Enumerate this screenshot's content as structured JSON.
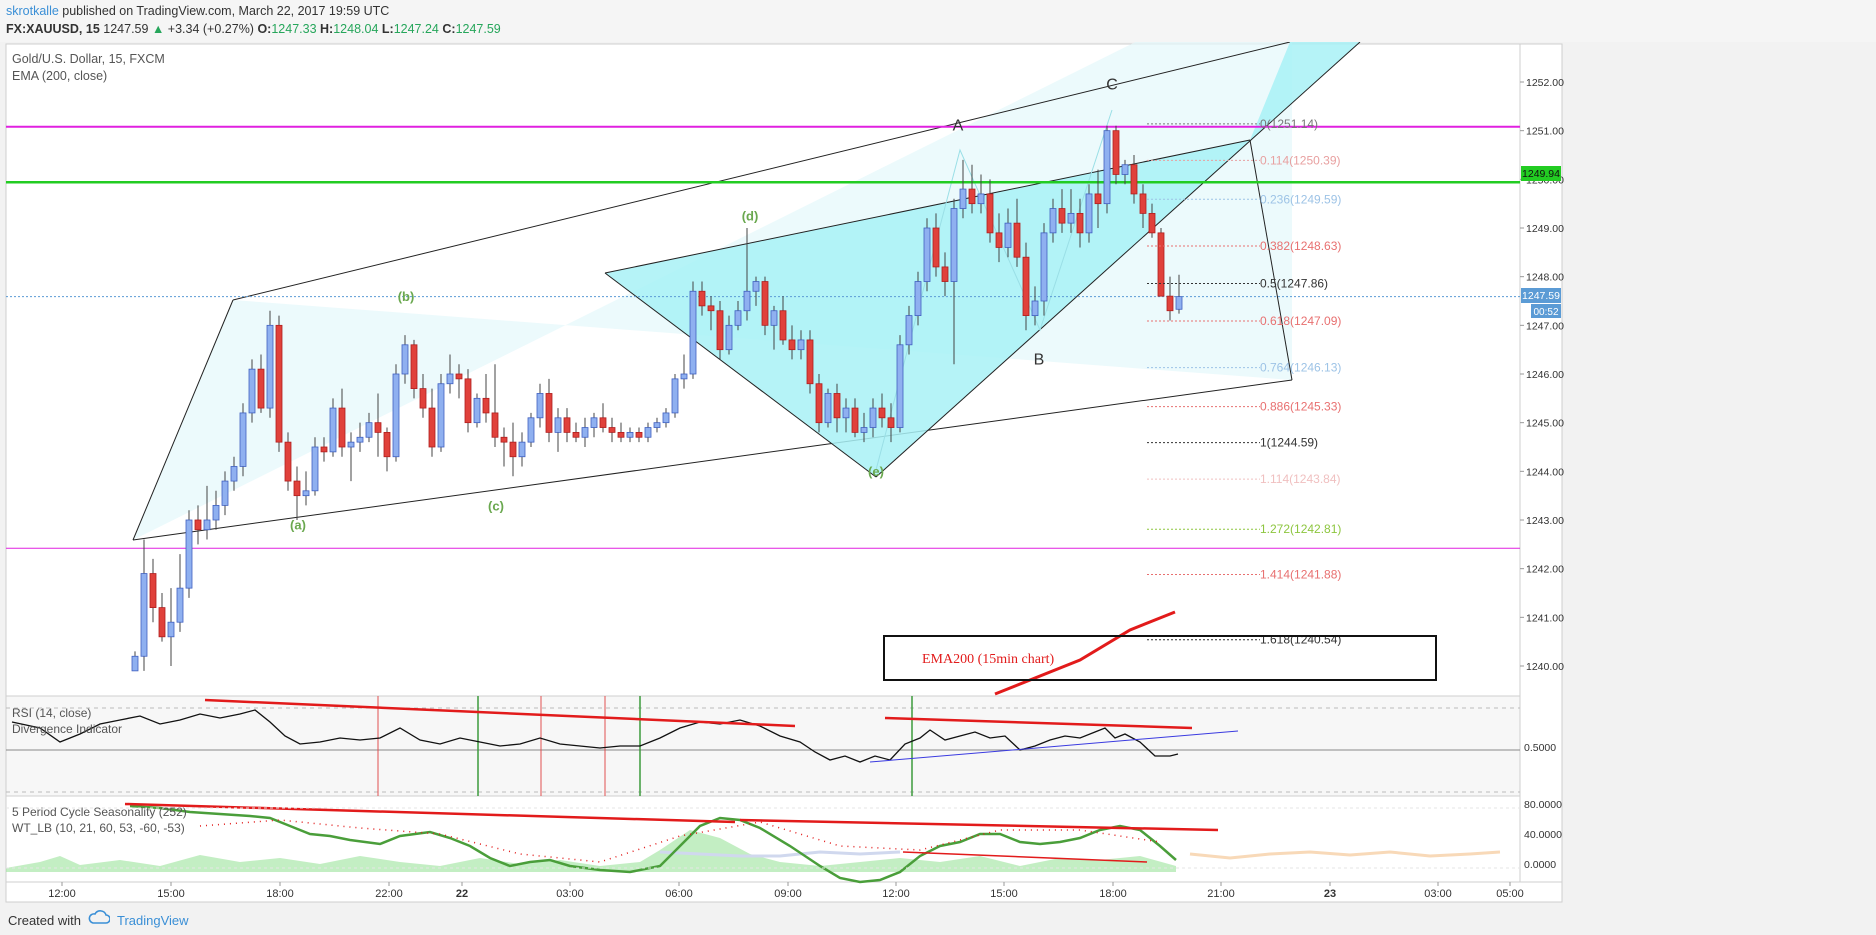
{
  "header": {
    "author": "skrotkalle",
    "published": " published on TradingView.com, March 22, 2017 19:59 UTC",
    "symbol": "FX:XAUUSD, 15",
    "change_arrow": "▲",
    "change": "+3.34 (+0.27%)",
    "o_label": "O:",
    "o": "1247.33",
    "h_label": "H:",
    "h": "1248.04",
    "l_label": "L:",
    "l": "1247.24",
    "c_label": "C:",
    "c": "1247.59",
    "last": "1247.59"
  },
  "chart_data": {
    "type": "candlestick",
    "title": "Gold/U.S. Dollar, 15, FXCM",
    "indicator": "EMA (200, close)",
    "y_ticks": [
      "1252.00",
      "1251.00",
      "1250.00",
      "1249.00",
      "1248.00",
      "1247.00",
      "1246.00",
      "1245.00",
      "1244.00",
      "1243.00",
      "1242.00",
      "1241.00",
      "1240.00"
    ],
    "ylim": [
      1239.9,
      1252.3
    ],
    "x_ticks": [
      {
        "label": "12:00",
        "x": 62
      },
      {
        "label": "15:00",
        "x": 171
      },
      {
        "label": "18:00",
        "x": 280
      },
      {
        "label": "22:00",
        "x": 389
      },
      {
        "label": "22",
        "x": 462
      },
      {
        "label": "03:00",
        "x": 570
      },
      {
        "label": "06:00",
        "x": 679
      },
      {
        "label": "09:00",
        "x": 788
      },
      {
        "label": "12:00",
        "x": 896
      },
      {
        "label": "15:00",
        "x": 1004
      },
      {
        "label": "18:00",
        "x": 1113
      },
      {
        "label": "21:00",
        "x": 1221
      },
      {
        "label": "23",
        "x": 1330
      },
      {
        "label": "03:00",
        "x": 1438
      },
      {
        "label": "05:00",
        "x": 1510
      }
    ],
    "price_labels": {
      "green_line": "1249.94",
      "last": "1247.59",
      "countdown": "00:52"
    },
    "horizontal_lines": [
      {
        "name": "magenta-top",
        "price": 1251.08,
        "color": "#e020e0"
      },
      {
        "name": "green",
        "price": 1249.94,
        "color": "#22cc22"
      },
      {
        "name": "magenta-bottom",
        "price": 1242.42,
        "color": "#e020e0"
      },
      {
        "name": "last-price",
        "price": 1247.59,
        "color": "#5b9bd5"
      }
    ],
    "fib_levels": [
      {
        "label": "0(1251.14)",
        "price": 1251.14,
        "color": "#777777"
      },
      {
        "label": "0.114(1250.39)",
        "price": 1250.39,
        "color": "#e8a0a0"
      },
      {
        "label": "0.236(1249.59)",
        "price": 1249.59,
        "color": "#9dc3e6"
      },
      {
        "label": "0.382(1248.63)",
        "price": 1248.63,
        "color": "#e87070"
      },
      {
        "label": "0.5(1247.86)",
        "price": 1247.86,
        "color": "#333333"
      },
      {
        "label": "0.618(1247.09)",
        "price": 1247.09,
        "color": "#e87070"
      },
      {
        "label": "0.764(1246.13)",
        "price": 1246.13,
        "color": "#9dc3e6"
      },
      {
        "label": "0.886(1245.33)",
        "price": 1245.33,
        "color": "#e87070"
      },
      {
        "label": "1(1244.59)",
        "price": 1244.59,
        "color": "#333333"
      },
      {
        "label": "1.114(1243.84)",
        "price": 1243.84,
        "color": "#f0c0c0"
      },
      {
        "label": "1.272(1242.81)",
        "price": 1242.81,
        "color": "#8dc63f"
      },
      {
        "label": "1.414(1241.88)",
        "price": 1241.88,
        "color": "#e87070"
      },
      {
        "label": "1.618(1240.54)",
        "price": 1240.54,
        "color": "#333333"
      }
    ],
    "wave_labels": [
      {
        "text": "(a)",
        "price": 1242.8,
        "x": 298,
        "color": "#6aa84f"
      },
      {
        "text": "(b)",
        "price": 1247.5,
        "x": 406,
        "color": "#6aa84f"
      },
      {
        "text": "(c)",
        "price": 1243.2,
        "x": 496,
        "color": "#6aa84f"
      },
      {
        "text": "(d)",
        "price": 1249.15,
        "x": 750,
        "color": "#6aa84f"
      },
      {
        "text": "(e)",
        "price": 1243.9,
        "x": 876,
        "color": "#6aa84f"
      },
      {
        "text": "A",
        "price": 1251.0,
        "x": 958,
        "color": "#333333"
      },
      {
        "text": "B",
        "price": 1246.2,
        "x": 1039,
        "color": "#333333"
      },
      {
        "text": "C",
        "price": 1251.85,
        "x": 1112,
        "color": "#333333"
      }
    ],
    "annotation": "EMA200 (15min chart)",
    "candles": [
      {
        "x": 135,
        "o": 1239.9,
        "h": 1240.3,
        "l": 1239.9,
        "c": 1240.2
      },
      {
        "x": 144,
        "o": 1240.2,
        "h": 1242.6,
        "l": 1239.9,
        "c": 1241.9
      },
      {
        "x": 153,
        "o": 1241.9,
        "h": 1242.2,
        "l": 1240.9,
        "c": 1241.2
      },
      {
        "x": 162,
        "o": 1241.2,
        "h": 1241.5,
        "l": 1240.5,
        "c": 1240.6
      },
      {
        "x": 171,
        "o": 1240.6,
        "h": 1241.6,
        "l": 1240.0,
        "c": 1240.9
      },
      {
        "x": 180,
        "o": 1240.9,
        "h": 1242.3,
        "l": 1240.7,
        "c": 1241.6
      },
      {
        "x": 189,
        "o": 1241.6,
        "h": 1243.2,
        "l": 1241.4,
        "c": 1243.0
      },
      {
        "x": 198,
        "o": 1243.0,
        "h": 1243.3,
        "l": 1242.5,
        "c": 1242.8
      },
      {
        "x": 207,
        "o": 1242.8,
        "h": 1243.7,
        "l": 1242.6,
        "c": 1243.0
      },
      {
        "x": 216,
        "o": 1243.0,
        "h": 1243.6,
        "l": 1242.8,
        "c": 1243.3
      },
      {
        "x": 225,
        "o": 1243.3,
        "h": 1244.0,
        "l": 1243.1,
        "c": 1243.8
      },
      {
        "x": 234,
        "o": 1243.8,
        "h": 1244.3,
        "l": 1243.6,
        "c": 1244.1
      },
      {
        "x": 243,
        "o": 1244.1,
        "h": 1245.4,
        "l": 1243.9,
        "c": 1245.2
      },
      {
        "x": 252,
        "o": 1245.2,
        "h": 1246.3,
        "l": 1245.0,
        "c": 1246.1
      },
      {
        "x": 261,
        "o": 1246.1,
        "h": 1246.4,
        "l": 1245.2,
        "c": 1245.3
      },
      {
        "x": 270,
        "o": 1245.3,
        "h": 1247.3,
        "l": 1245.1,
        "c": 1247.0
      },
      {
        "x": 279,
        "o": 1247.0,
        "h": 1247.2,
        "l": 1244.4,
        "c": 1244.6
      },
      {
        "x": 288,
        "o": 1244.6,
        "h": 1244.8,
        "l": 1243.6,
        "c": 1243.8
      },
      {
        "x": 297,
        "o": 1243.8,
        "h": 1244.1,
        "l": 1243.0,
        "c": 1243.5
      },
      {
        "x": 306,
        "o": 1243.5,
        "h": 1244.0,
        "l": 1243.3,
        "c": 1243.6
      },
      {
        "x": 315,
        "o": 1243.6,
        "h": 1244.7,
        "l": 1243.5,
        "c": 1244.5
      },
      {
        "x": 324,
        "o": 1244.5,
        "h": 1244.7,
        "l": 1244.2,
        "c": 1244.4
      },
      {
        "x": 333,
        "o": 1244.4,
        "h": 1245.5,
        "l": 1244.3,
        "c": 1245.3
      },
      {
        "x": 342,
        "o": 1245.3,
        "h": 1245.7,
        "l": 1244.3,
        "c": 1244.5
      },
      {
        "x": 351,
        "o": 1244.5,
        "h": 1244.8,
        "l": 1243.8,
        "c": 1244.6
      },
      {
        "x": 360,
        "o": 1244.6,
        "h": 1245.0,
        "l": 1244.4,
        "c": 1244.7
      },
      {
        "x": 369,
        "o": 1244.7,
        "h": 1245.2,
        "l": 1244.6,
        "c": 1245.0
      },
      {
        "x": 378,
        "o": 1245.0,
        "h": 1245.6,
        "l": 1244.3,
        "c": 1244.8
      },
      {
        "x": 387,
        "o": 1244.8,
        "h": 1244.9,
        "l": 1244.0,
        "c": 1244.3
      },
      {
        "x": 396,
        "o": 1244.3,
        "h": 1246.2,
        "l": 1244.2,
        "c": 1246.0
      },
      {
        "x": 405,
        "o": 1246.0,
        "h": 1246.8,
        "l": 1245.8,
        "c": 1246.6
      },
      {
        "x": 414,
        "o": 1246.6,
        "h": 1246.7,
        "l": 1245.5,
        "c": 1245.7
      },
      {
        "x": 423,
        "o": 1245.7,
        "h": 1246.0,
        "l": 1245.1,
        "c": 1245.3
      },
      {
        "x": 432,
        "o": 1245.3,
        "h": 1245.7,
        "l": 1244.3,
        "c": 1244.5
      },
      {
        "x": 441,
        "o": 1244.5,
        "h": 1246.0,
        "l": 1244.4,
        "c": 1245.8
      },
      {
        "x": 450,
        "o": 1245.8,
        "h": 1246.4,
        "l": 1245.6,
        "c": 1246.0
      },
      {
        "x": 459,
        "o": 1246.0,
        "h": 1246.2,
        "l": 1245.5,
        "c": 1245.9
      },
      {
        "x": 468,
        "o": 1245.9,
        "h": 1246.1,
        "l": 1244.8,
        "c": 1245.0
      },
      {
        "x": 477,
        "o": 1245.0,
        "h": 1245.6,
        "l": 1244.9,
        "c": 1245.5
      },
      {
        "x": 486,
        "o": 1245.5,
        "h": 1246.0,
        "l": 1245.0,
        "c": 1245.2
      },
      {
        "x": 495,
        "o": 1245.2,
        "h": 1246.2,
        "l": 1244.5,
        "c": 1244.7
      },
      {
        "x": 504,
        "o": 1244.7,
        "h": 1244.9,
        "l": 1244.1,
        "c": 1244.6
      },
      {
        "x": 513,
        "o": 1244.6,
        "h": 1245.0,
        "l": 1243.9,
        "c": 1244.3
      },
      {
        "x": 522,
        "o": 1244.3,
        "h": 1244.8,
        "l": 1244.1,
        "c": 1244.6
      },
      {
        "x": 531,
        "o": 1244.6,
        "h": 1245.2,
        "l": 1244.5,
        "c": 1245.1
      },
      {
        "x": 540,
        "o": 1245.1,
        "h": 1245.8,
        "l": 1244.9,
        "c": 1245.6
      },
      {
        "x": 549,
        "o": 1245.6,
        "h": 1245.9,
        "l": 1244.6,
        "c": 1244.8
      },
      {
        "x": 558,
        "o": 1244.8,
        "h": 1245.3,
        "l": 1244.4,
        "c": 1245.1
      },
      {
        "x": 567,
        "o": 1245.1,
        "h": 1245.3,
        "l": 1244.6,
        "c": 1244.8
      },
      {
        "x": 576,
        "o": 1244.8,
        "h": 1245.0,
        "l": 1244.6,
        "c": 1244.7
      },
      {
        "x": 585,
        "o": 1244.7,
        "h": 1245.1,
        "l": 1244.5,
        "c": 1244.9
      },
      {
        "x": 594,
        "o": 1244.9,
        "h": 1245.2,
        "l": 1244.7,
        "c": 1245.1
      },
      {
        "x": 603,
        "o": 1245.1,
        "h": 1245.4,
        "l": 1244.8,
        "c": 1244.9
      },
      {
        "x": 612,
        "o": 1244.9,
        "h": 1245.1,
        "l": 1244.6,
        "c": 1244.8
      },
      {
        "x": 621,
        "o": 1244.8,
        "h": 1245.0,
        "l": 1244.6,
        "c": 1244.7
      },
      {
        "x": 630,
        "o": 1244.7,
        "h": 1244.9,
        "l": 1244.6,
        "c": 1244.8
      },
      {
        "x": 639,
        "o": 1244.8,
        "h": 1244.9,
        "l": 1244.6,
        "c": 1244.7
      },
      {
        "x": 648,
        "o": 1244.7,
        "h": 1245.0,
        "l": 1244.6,
        "c": 1244.9
      },
      {
        "x": 657,
        "o": 1244.9,
        "h": 1245.1,
        "l": 1244.8,
        "c": 1245.0
      },
      {
        "x": 666,
        "o": 1245.0,
        "h": 1245.3,
        "l": 1244.9,
        "c": 1245.2
      },
      {
        "x": 675,
        "o": 1245.2,
        "h": 1246.0,
        "l": 1245.1,
        "c": 1245.9
      },
      {
        "x": 684,
        "o": 1245.9,
        "h": 1246.4,
        "l": 1245.7,
        "c": 1246.0
      },
      {
        "x": 693,
        "o": 1246.0,
        "h": 1247.9,
        "l": 1245.9,
        "c": 1247.7
      },
      {
        "x": 702,
        "o": 1247.7,
        "h": 1247.9,
        "l": 1247.2,
        "c": 1247.4
      },
      {
        "x": 711,
        "o": 1247.4,
        "h": 1247.6,
        "l": 1246.9,
        "c": 1247.3
      },
      {
        "x": 720,
        "o": 1247.3,
        "h": 1247.5,
        "l": 1246.3,
        "c": 1246.5
      },
      {
        "x": 729,
        "o": 1246.5,
        "h": 1247.2,
        "l": 1246.4,
        "c": 1247.0
      },
      {
        "x": 738,
        "o": 1247.0,
        "h": 1247.5,
        "l": 1246.9,
        "c": 1247.3
      },
      {
        "x": 747,
        "o": 1247.3,
        "h": 1249.0,
        "l": 1247.1,
        "c": 1247.7
      },
      {
        "x": 756,
        "o": 1247.7,
        "h": 1248.0,
        "l": 1247.4,
        "c": 1247.9
      },
      {
        "x": 765,
        "o": 1247.9,
        "h": 1248.0,
        "l": 1246.8,
        "c": 1247.0
      },
      {
        "x": 774,
        "o": 1247.0,
        "h": 1247.4,
        "l": 1246.5,
        "c": 1247.3
      },
      {
        "x": 783,
        "o": 1247.3,
        "h": 1247.6,
        "l": 1246.6,
        "c": 1246.7
      },
      {
        "x": 792,
        "o": 1246.7,
        "h": 1247.0,
        "l": 1246.3,
        "c": 1246.5
      },
      {
        "x": 801,
        "o": 1246.5,
        "h": 1246.9,
        "l": 1246.3,
        "c": 1246.7
      },
      {
        "x": 810,
        "o": 1246.7,
        "h": 1246.9,
        "l": 1245.6,
        "c": 1245.8
      },
      {
        "x": 819,
        "o": 1245.8,
        "h": 1246.0,
        "l": 1244.8,
        "c": 1245.0
      },
      {
        "x": 828,
        "o": 1245.0,
        "h": 1245.7,
        "l": 1244.9,
        "c": 1245.6
      },
      {
        "x": 837,
        "o": 1245.6,
        "h": 1245.8,
        "l": 1244.8,
        "c": 1245.1
      },
      {
        "x": 846,
        "o": 1245.1,
        "h": 1245.5,
        "l": 1244.8,
        "c": 1245.3
      },
      {
        "x": 855,
        "o": 1245.3,
        "h": 1245.5,
        "l": 1244.7,
        "c": 1244.8
      },
      {
        "x": 864,
        "o": 1244.8,
        "h": 1245.2,
        "l": 1244.6,
        "c": 1244.9
      },
      {
        "x": 873,
        "o": 1244.9,
        "h": 1245.5,
        "l": 1244.7,
        "c": 1245.3
      },
      {
        "x": 882,
        "o": 1245.3,
        "h": 1245.6,
        "l": 1244.9,
        "c": 1245.1
      },
      {
        "x": 891,
        "o": 1245.1,
        "h": 1245.4,
        "l": 1244.6,
        "c": 1244.9
      },
      {
        "x": 900,
        "o": 1244.9,
        "h": 1246.8,
        "l": 1244.8,
        "c": 1246.6
      },
      {
        "x": 909,
        "o": 1246.6,
        "h": 1247.4,
        "l": 1246.4,
        "c": 1247.2
      },
      {
        "x": 918,
        "o": 1247.2,
        "h": 1248.1,
        "l": 1247.0,
        "c": 1247.9
      },
      {
        "x": 927,
        "o": 1247.9,
        "h": 1249.2,
        "l": 1247.7,
        "c": 1249.0
      },
      {
        "x": 936,
        "o": 1249.0,
        "h": 1249.3,
        "l": 1248.0,
        "c": 1248.2
      },
      {
        "x": 945,
        "o": 1248.2,
        "h": 1248.5,
        "l": 1247.6,
        "c": 1247.9
      },
      {
        "x": 954,
        "o": 1247.9,
        "h": 1249.6,
        "l": 1246.2,
        "c": 1249.4
      },
      {
        "x": 963,
        "o": 1249.4,
        "h": 1250.4,
        "l": 1249.2,
        "c": 1249.8
      },
      {
        "x": 972,
        "o": 1249.8,
        "h": 1250.3,
        "l": 1249.3,
        "c": 1249.5
      },
      {
        "x": 981,
        "o": 1249.5,
        "h": 1250.1,
        "l": 1249.3,
        "c": 1249.7
      },
      {
        "x": 990,
        "o": 1249.7,
        "h": 1250.0,
        "l": 1248.7,
        "c": 1248.9
      },
      {
        "x": 999,
        "o": 1248.9,
        "h": 1249.3,
        "l": 1248.3,
        "c": 1248.6
      },
      {
        "x": 1008,
        "o": 1248.6,
        "h": 1249.4,
        "l": 1248.4,
        "c": 1249.1
      },
      {
        "x": 1017,
        "o": 1249.1,
        "h": 1249.6,
        "l": 1248.2,
        "c": 1248.4
      },
      {
        "x": 1026,
        "o": 1248.4,
        "h": 1248.7,
        "l": 1246.9,
        "c": 1247.2
      },
      {
        "x": 1035,
        "o": 1247.2,
        "h": 1247.8,
        "l": 1247.0,
        "c": 1247.5
      },
      {
        "x": 1044,
        "o": 1247.5,
        "h": 1249.1,
        "l": 1247.2,
        "c": 1248.9
      },
      {
        "x": 1053,
        "o": 1248.9,
        "h": 1249.6,
        "l": 1248.7,
        "c": 1249.4
      },
      {
        "x": 1062,
        "o": 1249.4,
        "h": 1249.8,
        "l": 1248.9,
        "c": 1249.1
      },
      {
        "x": 1071,
        "o": 1249.1,
        "h": 1249.8,
        "l": 1248.9,
        "c": 1249.3
      },
      {
        "x": 1080,
        "o": 1249.3,
        "h": 1249.6,
        "l": 1248.6,
        "c": 1248.9
      },
      {
        "x": 1089,
        "o": 1248.9,
        "h": 1249.9,
        "l": 1248.7,
        "c": 1249.7
      },
      {
        "x": 1098,
        "o": 1249.7,
        "h": 1250.2,
        "l": 1249.0,
        "c": 1249.5
      },
      {
        "x": 1107,
        "o": 1249.5,
        "h": 1251.1,
        "l": 1249.3,
        "c": 1251.0
      },
      {
        "x": 1116,
        "o": 1251.0,
        "h": 1251.1,
        "l": 1249.9,
        "c": 1250.1
      },
      {
        "x": 1125,
        "o": 1250.1,
        "h": 1250.4,
        "l": 1249.9,
        "c": 1250.3
      },
      {
        "x": 1134,
        "o": 1250.3,
        "h": 1250.5,
        "l": 1249.5,
        "c": 1249.7
      },
      {
        "x": 1143,
        "o": 1249.7,
        "h": 1249.9,
        "l": 1249.0,
        "c": 1249.3
      },
      {
        "x": 1152,
        "o": 1249.3,
        "h": 1249.5,
        "l": 1248.8,
        "c": 1248.9
      },
      {
        "x": 1161,
        "o": 1248.9,
        "h": 1249.0,
        "l": 1247.6,
        "c": 1247.6
      },
      {
        "x": 1170,
        "o": 1247.6,
        "h": 1248.0,
        "l": 1247.1,
        "c": 1247.3
      },
      {
        "x": 1179,
        "o": 1247.33,
        "h": 1248.04,
        "l": 1247.24,
        "c": 1247.59
      }
    ],
    "rsi_panel": {
      "label": "RSI (14, close)",
      "sub_label": "Divergence Indicator",
      "level_label": "0.5000",
      "ylim": [
        0,
        1
      ]
    },
    "seasonality_panel": {
      "label": "5 Period Cycle Seasonality (252)",
      "sub_label": "WT_LB (10, 21, 60, 53, -60, -53)",
      "y_ticks": [
        "80.0000",
        "40.0000",
        "0.0000"
      ],
      "ylim": [
        -15,
        90
      ]
    }
  },
  "footer": {
    "created_with": "Created with",
    "brand": "TradingView"
  }
}
